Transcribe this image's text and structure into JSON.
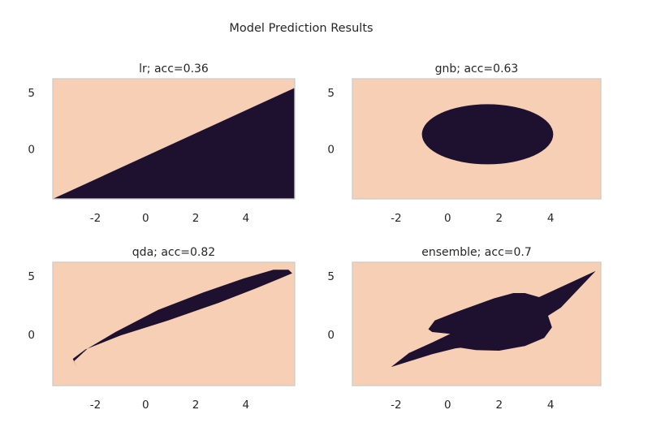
{
  "figure": {
    "title": "Model Prediction Results",
    "colors": {
      "background_class": "#f6cfb5",
      "region_class": "#1e1130",
      "frame": "#cccccc",
      "text": "#262626"
    }
  },
  "chart_data": [
    {
      "type": "heatmap",
      "title": "lr; acc=0.36",
      "xlim": [
        -3.7,
        5.95
      ],
      "ylim": [
        -4.4,
        6.2
      ],
      "x_ticks": [
        "-2",
        "0",
        "2",
        "4"
      ],
      "y_ticks": [
        "5",
        "0"
      ],
      "x_tick_values": [
        -2,
        0,
        2,
        4
      ],
      "y_tick_values": [
        5,
        0
      ],
      "grid": false,
      "dark_region": {
        "shape": "polygon",
        "points": [
          [
            -3.7,
            -4.4
          ],
          [
            5.95,
            5.4
          ],
          [
            5.95,
            -4.4
          ]
        ]
      }
    },
    {
      "type": "heatmap",
      "title": "gnb; acc=0.63",
      "xlim": [
        -3.7,
        5.95
      ],
      "ylim": [
        -4.4,
        6.2
      ],
      "x_ticks": [
        "-2",
        "0",
        "2",
        "4"
      ],
      "y_ticks": [
        "5",
        "0"
      ],
      "x_tick_values": [
        -2,
        0,
        2,
        4
      ],
      "y_tick_values": [
        5,
        0
      ],
      "grid": false,
      "dark_region": {
        "shape": "ellipse",
        "cx": 1.55,
        "cy": 1.3,
        "rx": 2.55,
        "ry": 2.65,
        "rotation_deg": 0
      }
    },
    {
      "type": "heatmap",
      "title": "qda; acc=0.82",
      "xlim": [
        -3.7,
        5.95
      ],
      "ylim": [
        -4.4,
        6.2
      ],
      "x_ticks": [
        "-2",
        "0",
        "2",
        "4"
      ],
      "y_ticks": [
        "5",
        "0"
      ],
      "x_tick_values": [
        -2,
        0,
        2,
        4
      ],
      "y_tick_values": [
        5,
        0
      ],
      "grid": false,
      "dark_region": {
        "shape": "polygon",
        "points": [
          [
            -2.75,
            -2.8
          ],
          [
            -2.9,
            -2.1
          ],
          [
            -2.4,
            -1.3
          ],
          [
            -1.0,
            -0.1
          ],
          [
            0.9,
            1.2
          ],
          [
            2.9,
            2.7
          ],
          [
            4.4,
            3.95
          ],
          [
            5.35,
            4.8
          ],
          [
            5.85,
            5.25
          ],
          [
            5.7,
            5.55
          ],
          [
            5.1,
            5.55
          ],
          [
            3.9,
            4.8
          ],
          [
            2.3,
            3.6
          ],
          [
            0.5,
            2.1
          ],
          [
            -1.2,
            0.2
          ],
          [
            -2.3,
            -1.2
          ],
          [
            -2.85,
            -2.3
          ]
        ]
      }
    },
    {
      "type": "heatmap",
      "title": "ensemble; acc=0.7",
      "xlim": [
        -3.7,
        5.95
      ],
      "ylim": [
        -4.4,
        6.2
      ],
      "x_ticks": [
        "-2",
        "0",
        "2",
        "4"
      ],
      "y_ticks": [
        "5",
        "0"
      ],
      "x_tick_values": [
        -2,
        0,
        2,
        4
      ],
      "y_tick_values": [
        5,
        0
      ],
      "grid": false,
      "dark_region": {
        "shape": "polygon",
        "points": [
          [
            -2.2,
            -2.8
          ],
          [
            -0.6,
            -1.7
          ],
          [
            0.3,
            -1.2
          ],
          [
            0.5,
            -1.15
          ],
          [
            1.1,
            -1.35
          ],
          [
            2.0,
            -1.4
          ],
          [
            3.0,
            -1.0
          ],
          [
            3.75,
            -0.3
          ],
          [
            4.05,
            0.6
          ],
          [
            3.9,
            1.6
          ],
          [
            4.4,
            2.3
          ],
          [
            5.75,
            5.45
          ],
          [
            3.55,
            3.2
          ],
          [
            3.0,
            3.55
          ],
          [
            2.55,
            3.55
          ],
          [
            1.8,
            3.1
          ],
          [
            0.3,
            1.9
          ],
          [
            -0.5,
            1.2
          ],
          [
            -0.75,
            0.45
          ],
          [
            -0.6,
            0.2
          ],
          [
            0.1,
            0.05
          ],
          [
            -0.6,
            -0.7
          ],
          [
            -1.5,
            -1.6
          ]
        ]
      }
    }
  ]
}
